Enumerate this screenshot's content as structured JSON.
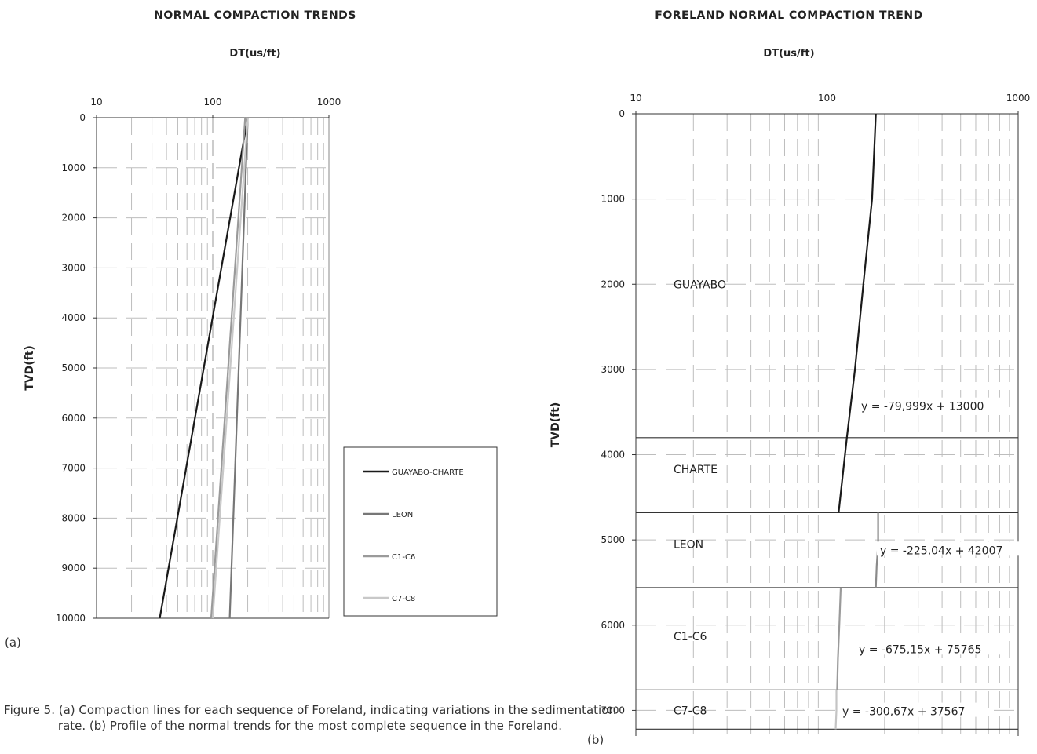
{
  "caption": "Figure 5. (a) Compaction lines for each sequence of Foreland, indicating variations in the sedimentation rate. (b) Profile of the normal trends for the most complete sequence in the Foreland.",
  "chart_data": [
    {
      "panel": "(a)",
      "type": "line",
      "title": "NORMAL COMPACTION TRENDS",
      "xlabel": "DT(us/ft)",
      "ylabel": "TVD(ft)",
      "x_scale": "log",
      "xlim": [
        10,
        1000
      ],
      "ylim": [
        0,
        10000
      ],
      "y_inverted": true,
      "x_ticks": [
        "10",
        "100",
        "1000"
      ],
      "y_ticks": [
        "0",
        "1000",
        "2000",
        "3000",
        "4000",
        "5000",
        "6000",
        "7000",
        "8000",
        "9000",
        "10000"
      ],
      "grid": true,
      "legend_position": "right",
      "series": [
        {
          "name": "GUAYABO-CHARTE",
          "color": "#1a1a1a",
          "points": [
            [
              200,
              0
            ],
            [
              35,
              10000
            ]
          ]
        },
        {
          "name": "LEON",
          "color": "#777777",
          "points": [
            [
              200,
              0
            ],
            [
              140,
              10000
            ]
          ]
        },
        {
          "name": "C1-C6",
          "color": "#9a9a9a",
          "points": [
            [
              190,
              0
            ],
            [
              97,
              10000
            ]
          ]
        },
        {
          "name": "C7-C8",
          "color": "#c8c8c8",
          "points": [
            [
              200,
              0
            ],
            [
              100,
              10000
            ]
          ]
        }
      ]
    },
    {
      "panel": "(b)",
      "type": "line",
      "title": "FORELAND NORMAL COMPACTION TREND",
      "xlabel": "DT(us/ft)",
      "ylabel": "TVD(ft)",
      "x_scale": "log",
      "xlim": [
        10,
        1000
      ],
      "ylim": [
        0,
        7300
      ],
      "y_inverted": true,
      "x_ticks": [
        "10",
        "100",
        "1000"
      ],
      "y_ticks": [
        "0",
        "1000",
        "2000",
        "3000",
        "4000",
        "5000",
        "6000",
        "7000"
      ],
      "grid": true,
      "boundaries": [
        3800,
        4680,
        5560,
        6760,
        7220
      ],
      "zones": [
        {
          "name": "GUAYABO",
          "depth": 2000
        },
        {
          "name": "CHARTE",
          "depth": 4170
        },
        {
          "name": "LEON",
          "depth": 5050
        },
        {
          "name": "C1-C6",
          "depth": 6130
        },
        {
          "name": "C7-C8",
          "depth": 7000
        }
      ],
      "equations": [
        {
          "text": "y = -79,999x + 13000",
          "depth": 3440
        },
        {
          "text": "y = -225,04x + 42007",
          "depth": 5130
        },
        {
          "text": "y = -675,15x + 75765",
          "depth": 6290
        },
        {
          "text": "y = -300,67x + 37567",
          "depth": 7020
        }
      ],
      "series": [
        {
          "name": "GUAYABO-CHARTE",
          "color": "#1a1a1a",
          "points": [
            [
              180,
              0
            ],
            [
              172,
              1000
            ],
            [
              155,
              2000
            ],
            [
              140,
              3000
            ],
            [
              127,
              3800
            ],
            [
              115,
              4680
            ]
          ]
        },
        {
          "name": "LEON",
          "color": "#8a8a8a",
          "points": [
            [
              185,
              4680
            ],
            [
              185,
              5050
            ],
            [
              182,
              5300
            ],
            [
              180,
              5560
            ]
          ]
        },
        {
          "name": "C1-C6",
          "color": "#9a9a9a",
          "points": [
            [
              118,
              5560
            ],
            [
              116,
              6000
            ],
            [
              114,
              6400
            ],
            [
              113,
              6760
            ]
          ]
        },
        {
          "name": "C7-C8",
          "color": "#c4c4c4",
          "points": [
            [
              112,
              6760
            ],
            [
              112,
              7000
            ],
            [
              111,
              7220
            ]
          ]
        }
      ]
    }
  ]
}
